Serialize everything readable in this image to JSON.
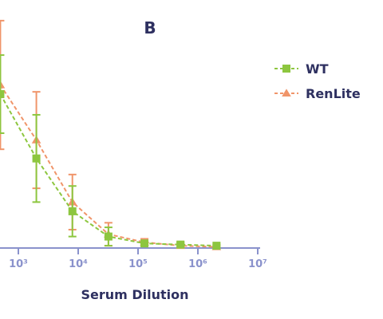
{
  "chart_data": {
    "type": "line",
    "title": "B",
    "xlabel": "Serum Dilution",
    "ylabel": "",
    "x_scale": "log",
    "xlim": [
      100,
      10000000
    ],
    "ylim": [
      0,
      100
    ],
    "xticks": [
      {
        "value": 1000,
        "label": "10³"
      },
      {
        "value": 10000,
        "label": "10⁴"
      },
      {
        "value": 100000,
        "label": "10⁵"
      },
      {
        "value": 1000000,
        "label": "10⁶"
      },
      {
        "value": 10000000,
        "label": "10⁷"
      }
    ],
    "grid": false,
    "legend_position": "right",
    "series": [
      {
        "name": "WT",
        "color": "#8dc63f",
        "marker": "square",
        "points": [
          {
            "x": 500,
            "y": 67,
            "err": 17
          },
          {
            "x": 2000,
            "y": 39,
            "err": 19
          },
          {
            "x": 8000,
            "y": 16,
            "err": 11
          },
          {
            "x": 32000,
            "y": 5,
            "err": 4
          },
          {
            "x": 128000,
            "y": 2,
            "err": 1
          },
          {
            "x": 512000,
            "y": 1.5,
            "err": 1
          },
          {
            "x": 2048000,
            "y": 1,
            "err": 0.5
          }
        ]
      },
      {
        "name": "RenLite",
        "color": "#f0956a",
        "marker": "triangle",
        "points": [
          {
            "x": 500,
            "y": 71,
            "err": 28
          },
          {
            "x": 2000,
            "y": 47,
            "err": 21
          },
          {
            "x": 8000,
            "y": 20,
            "err": 12
          },
          {
            "x": 32000,
            "y": 6,
            "err": 5
          },
          {
            "x": 128000,
            "y": 2.5,
            "err": 1.5
          },
          {
            "x": 512000,
            "y": 1,
            "err": 1
          },
          {
            "x": 2048000,
            "y": 0.5,
            "err": 0.5
          }
        ]
      }
    ]
  }
}
